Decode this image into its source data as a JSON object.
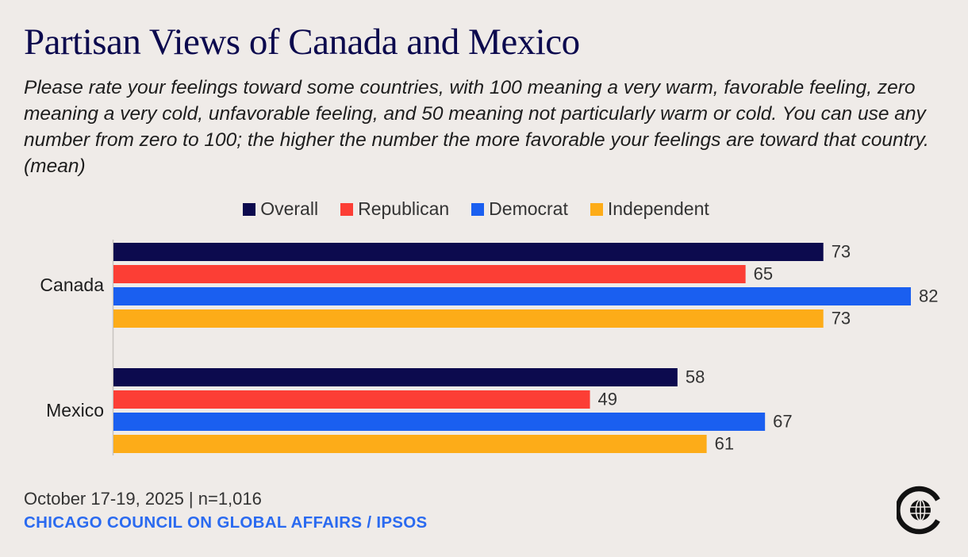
{
  "title": "Partisan Views of Canada and Mexico",
  "subtitle": "Please rate your feelings toward some countries, with 100 meaning a very warm, favorable feeling, zero meaning a very cold, unfavorable feeling, and 50 meaning not particularly warm or cold. You can use any number from zero to 100; the higher the number the more favorable your feelings are toward that country. (mean)",
  "footer": {
    "date": "October 17-19, 2025 | n=1,016",
    "source": "CHICAGO COUNCIL ON GLOBAL AFFAIRS / IPSOS"
  },
  "logo_icon": "chicago-council-globe-logo-icon",
  "chart_data": {
    "type": "bar",
    "orientation": "horizontal",
    "categories": [
      "Canada",
      "Mexico"
    ],
    "series": [
      {
        "name": "Overall",
        "color": "#0c0a4e",
        "values": [
          73,
          58
        ]
      },
      {
        "name": "Republican",
        "color": "#fc3e35",
        "values": [
          65,
          49
        ]
      },
      {
        "name": "Democrat",
        "color": "#1a5ff0",
        "values": [
          82,
          67
        ]
      },
      {
        "name": "Independent",
        "color": "#fdac18",
        "values": [
          73,
          61
        ]
      }
    ],
    "xlim": [
      0,
      82
    ],
    "grid": false,
    "legend": "top-center"
  }
}
